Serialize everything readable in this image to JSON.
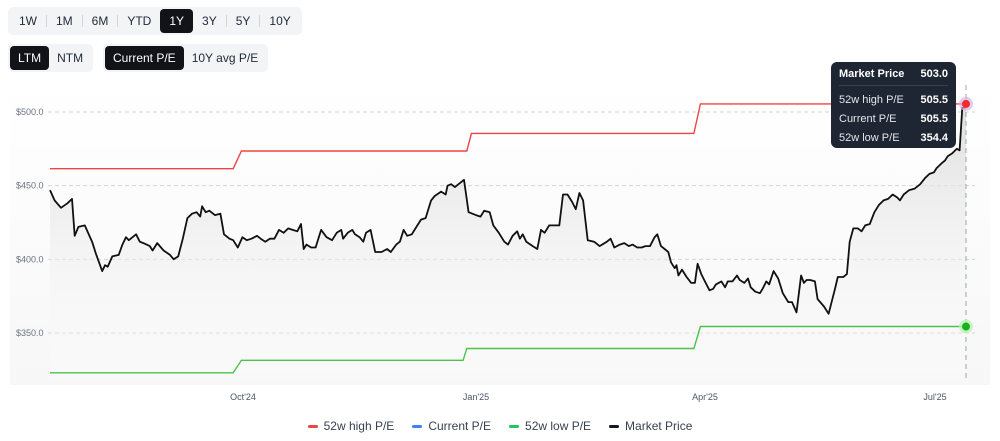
{
  "controls": {
    "range_tabs": [
      {
        "label": "1W",
        "active": false
      },
      {
        "label": "1M",
        "active": false
      },
      {
        "label": "6M",
        "active": false
      },
      {
        "label": "YTD",
        "active": false
      },
      {
        "label": "1Y",
        "active": true
      },
      {
        "label": "3Y",
        "active": false
      },
      {
        "label": "5Y",
        "active": false
      },
      {
        "label": "10Y",
        "active": false
      }
    ],
    "basis_tabs": [
      {
        "label": "LTM",
        "active": true
      },
      {
        "label": "NTM",
        "active": false
      }
    ],
    "pe_tabs": [
      {
        "label": "Current P/E",
        "active": true
      },
      {
        "label": "10Y avg P/E",
        "active": false
      }
    ]
  },
  "tooltip": {
    "title": "Market Price",
    "title_value": "503.0",
    "rows": [
      {
        "label": "52w high P/E",
        "value": "505.5"
      },
      {
        "label": "Current P/E",
        "value": "505.5"
      },
      {
        "label": "52w low P/E",
        "value": "354.4"
      }
    ]
  },
  "legend": [
    {
      "label": "52w high P/E",
      "color": "#ef4444"
    },
    {
      "label": "Current P/E",
      "color": "#3b82f6"
    },
    {
      "label": "52w low P/E",
      "color": "#22c55e"
    },
    {
      "label": "Market Price",
      "color": "#111827"
    }
  ],
  "colors": {
    "high_pe": "#ef4444",
    "current_pe": "#3b82f6",
    "low_pe": "#4cc24c",
    "market_price": "#111111",
    "tooltip_bg": "#1e2533"
  },
  "chart_data": {
    "type": "line",
    "title": "",
    "xlabel": "",
    "ylabel": "",
    "ylim": [
      325,
      515
    ],
    "y_ticks": [
      "$350.0",
      "$400.0",
      "$450.0",
      "$500.0"
    ],
    "y_tick_values": [
      350,
      400,
      450,
      500
    ],
    "x_ticks": [
      "Oct'24",
      "Jan'25",
      "Apr'25",
      "Jul'25"
    ],
    "grid": true,
    "legend_position": "bottom",
    "series": [
      {
        "name": "52w high P/E",
        "type": "step",
        "points": [
          [
            0.0,
            461.5
          ],
          [
            0.2,
            461.5
          ],
          [
            0.209,
            473.5
          ],
          [
            0.455,
            473.5
          ],
          [
            0.46,
            485.5
          ],
          [
            0.703,
            485.5
          ],
          [
            0.71,
            505.5
          ],
          [
            1.0,
            505.5
          ]
        ]
      },
      {
        "name": "52w low P/E",
        "type": "step",
        "points": [
          [
            0.0,
            323.0
          ],
          [
            0.2,
            323.0
          ],
          [
            0.209,
            331.5
          ],
          [
            0.451,
            331.5
          ],
          [
            0.455,
            339.5
          ],
          [
            0.703,
            339.5
          ],
          [
            0.71,
            354.4
          ],
          [
            1.0,
            354.4
          ]
        ]
      },
      {
        "name": "Market Price",
        "type": "line",
        "points": [
          [
            0.0,
            447
          ],
          [
            0.005,
            440
          ],
          [
            0.012,
            435
          ],
          [
            0.019,
            438
          ],
          [
            0.024,
            441
          ],
          [
            0.027,
            416
          ],
          [
            0.031,
            422
          ],
          [
            0.038,
            423
          ],
          [
            0.043,
            416
          ],
          [
            0.046,
            412
          ],
          [
            0.05,
            404
          ],
          [
            0.057,
            392
          ],
          [
            0.06,
            396
          ],
          [
            0.063,
            395
          ],
          [
            0.068,
            402
          ],
          [
            0.075,
            403
          ],
          [
            0.079,
            410
          ],
          [
            0.083,
            415
          ],
          [
            0.086,
            413
          ],
          [
            0.094,
            417
          ],
          [
            0.098,
            412
          ],
          [
            0.102,
            411
          ],
          [
            0.109,
            409
          ],
          [
            0.112,
            406
          ],
          [
            0.117,
            411
          ],
          [
            0.124,
            406
          ],
          [
            0.131,
            403
          ],
          [
            0.135,
            400
          ],
          [
            0.14,
            402
          ],
          [
            0.145,
            414
          ],
          [
            0.15,
            428
          ],
          [
            0.155,
            431
          ],
          [
            0.16,
            432
          ],
          [
            0.164,
            429
          ],
          [
            0.166,
            436
          ],
          [
            0.17,
            432
          ],
          [
            0.174,
            433
          ],
          [
            0.18,
            430
          ],
          [
            0.186,
            431
          ],
          [
            0.19,
            417
          ],
          [
            0.196,
            414
          ],
          [
            0.2,
            413
          ],
          [
            0.205,
            408
          ],
          [
            0.21,
            415
          ],
          [
            0.215,
            413
          ],
          [
            0.22,
            414
          ],
          [
            0.226,
            416
          ],
          [
            0.23,
            414
          ],
          [
            0.235,
            412
          ],
          [
            0.24,
            414
          ],
          [
            0.245,
            414
          ],
          [
            0.25,
            420
          ],
          [
            0.255,
            418
          ],
          [
            0.26,
            421
          ],
          [
            0.265,
            420
          ],
          [
            0.27,
            419
          ],
          [
            0.274,
            424
          ],
          [
            0.277,
            407
          ],
          [
            0.28,
            410
          ],
          [
            0.285,
            408
          ],
          [
            0.29,
            408
          ],
          [
            0.296,
            420
          ],
          [
            0.302,
            415
          ],
          [
            0.308,
            413
          ],
          [
            0.313,
            418
          ],
          [
            0.318,
            420
          ],
          [
            0.32,
            414
          ],
          [
            0.325,
            418
          ],
          [
            0.33,
            420
          ],
          [
            0.333,
            417
          ],
          [
            0.338,
            415
          ],
          [
            0.342,
            412
          ],
          [
            0.345,
            418
          ],
          [
            0.35,
            420
          ],
          [
            0.355,
            405
          ],
          [
            0.362,
            405
          ],
          [
            0.368,
            407
          ],
          [
            0.372,
            405
          ],
          [
            0.378,
            410
          ],
          [
            0.382,
            412
          ],
          [
            0.386,
            420
          ],
          [
            0.39,
            416
          ],
          [
            0.395,
            417
          ],
          [
            0.4,
            422
          ],
          [
            0.405,
            427
          ],
          [
            0.41,
            428
          ],
          [
            0.416,
            440
          ],
          [
            0.42,
            443
          ],
          [
            0.427,
            446
          ],
          [
            0.432,
            444
          ],
          [
            0.434,
            450
          ],
          [
            0.438,
            451
          ],
          [
            0.442,
            449
          ],
          [
            0.448,
            452
          ],
          [
            0.452,
            454
          ],
          [
            0.457,
            432
          ],
          [
            0.465,
            430
          ],
          [
            0.47,
            429
          ],
          [
            0.474,
            433
          ],
          [
            0.48,
            432
          ],
          [
            0.484,
            423
          ],
          [
            0.49,
            418
          ],
          [
            0.496,
            412
          ],
          [
            0.5,
            410
          ],
          [
            0.505,
            416
          ],
          [
            0.51,
            419
          ],
          [
            0.513,
            414
          ],
          [
            0.516,
            417
          ],
          [
            0.52,
            412
          ],
          [
            0.527,
            409
          ],
          [
            0.532,
            407
          ],
          [
            0.536,
            420
          ],
          [
            0.54,
            418
          ],
          [
            0.545,
            423
          ],
          [
            0.551,
            423
          ],
          [
            0.556,
            423
          ],
          [
            0.56,
            444
          ],
          [
            0.565,
            444
          ],
          [
            0.57,
            439
          ],
          [
            0.574,
            434
          ],
          [
            0.578,
            445
          ],
          [
            0.582,
            440
          ],
          [
            0.587,
            413
          ],
          [
            0.594,
            412
          ],
          [
            0.6,
            409
          ],
          [
            0.608,
            412
          ],
          [
            0.612,
            414
          ],
          [
            0.616,
            408
          ],
          [
            0.622,
            410
          ],
          [
            0.627,
            411
          ],
          [
            0.632,
            409
          ],
          [
            0.636,
            410
          ],
          [
            0.641,
            408
          ],
          [
            0.646,
            408
          ],
          [
            0.65,
            409
          ],
          [
            0.655,
            409
          ],
          [
            0.66,
            415
          ],
          [
            0.663,
            417
          ],
          [
            0.667,
            409
          ],
          [
            0.675,
            405
          ],
          [
            0.678,
            398
          ],
          [
            0.682,
            394
          ],
          [
            0.684,
            396
          ],
          [
            0.686,
            389
          ],
          [
            0.69,
            393
          ],
          [
            0.695,
            388
          ],
          [
            0.7,
            384
          ],
          [
            0.704,
            384
          ],
          [
            0.707,
            397
          ],
          [
            0.711,
            390
          ],
          [
            0.715,
            385
          ],
          [
            0.72,
            379
          ],
          [
            0.724,
            380
          ],
          [
            0.727,
            383
          ],
          [
            0.733,
            385
          ],
          [
            0.737,
            381
          ],
          [
            0.74,
            385
          ],
          [
            0.745,
            385
          ],
          [
            0.75,
            389
          ],
          [
            0.753,
            386
          ],
          [
            0.758,
            384
          ],
          [
            0.762,
            387
          ],
          [
            0.765,
            381
          ],
          [
            0.77,
            378
          ],
          [
            0.775,
            377
          ],
          [
            0.778,
            380
          ],
          [
            0.782,
            385
          ],
          [
            0.785,
            383
          ],
          [
            0.79,
            392
          ],
          [
            0.795,
            387
          ],
          [
            0.8,
            377
          ],
          [
            0.806,
            371
          ],
          [
            0.81,
            371
          ],
          [
            0.815,
            364
          ],
          [
            0.82,
            389
          ],
          [
            0.823,
            384
          ],
          [
            0.826,
            386
          ],
          [
            0.83,
            386
          ],
          [
            0.835,
            385
          ],
          [
            0.838,
            373
          ],
          [
            0.845,
            368
          ],
          [
            0.85,
            363
          ],
          [
            0.857,
            380
          ],
          [
            0.86,
            388
          ],
          [
            0.866,
            388
          ],
          [
            0.87,
            390
          ],
          [
            0.873,
            412
          ],
          [
            0.877,
            421
          ],
          [
            0.882,
            421
          ],
          [
            0.886,
            419
          ],
          [
            0.89,
            423
          ],
          [
            0.895,
            424
          ],
          [
            0.9,
            432
          ],
          [
            0.905,
            437
          ],
          [
            0.91,
            440
          ],
          [
            0.915,
            441
          ],
          [
            0.92,
            444
          ],
          [
            0.925,
            442
          ],
          [
            0.928,
            440
          ],
          [
            0.932,
            444
          ],
          [
            0.938,
            447
          ],
          [
            0.944,
            448
          ],
          [
            0.95,
            451
          ],
          [
            0.955,
            455
          ],
          [
            0.96,
            458
          ],
          [
            0.965,
            459
          ],
          [
            0.968,
            462
          ],
          [
            0.973,
            465
          ],
          [
            0.977,
            467
          ],
          [
            0.98,
            470
          ],
          [
            0.985,
            472
          ],
          [
            0.99,
            475
          ],
          [
            0.993,
            474
          ],
          [
            0.996,
            503
          ],
          [
            1.0,
            503
          ]
        ]
      }
    ],
    "crosshair": {
      "x_frac": 1.0,
      "market_price": 503.0,
      "high_pe": 505.5,
      "current_pe": 505.5,
      "low_pe": 354.4
    }
  }
}
